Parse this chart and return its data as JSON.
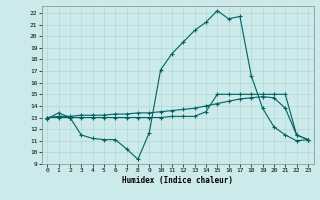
{
  "xlabel": "Humidex (Indice chaleur)",
  "bg_color": "#cceaea",
  "grid_color": "#afd8d8",
  "line_color": "#006060",
  "xlim": [
    -0.5,
    23.5
  ],
  "ylim": [
    9,
    22.6
  ],
  "yticks": [
    9,
    10,
    11,
    12,
    13,
    14,
    15,
    16,
    17,
    18,
    19,
    20,
    21,
    22
  ],
  "xticks": [
    0,
    1,
    2,
    3,
    4,
    5,
    6,
    7,
    8,
    9,
    10,
    11,
    12,
    13,
    14,
    15,
    16,
    17,
    18,
    19,
    20,
    21,
    22,
    23
  ],
  "line1_x": [
    0,
    1,
    2,
    3,
    4,
    5,
    6,
    7,
    8,
    9,
    10,
    11,
    12,
    13,
    14,
    15,
    16,
    17,
    18,
    19,
    20,
    21,
    22,
    23
  ],
  "line1_y": [
    12.9,
    13.4,
    13.0,
    11.5,
    11.2,
    11.1,
    11.1,
    10.3,
    9.4,
    11.7,
    17.1,
    18.5,
    19.5,
    20.5,
    21.2,
    22.2,
    21.5,
    21.7,
    16.6,
    13.8,
    12.2,
    11.5,
    11.0,
    11.1
  ],
  "line2_x": [
    0,
    1,
    2,
    3,
    4,
    5,
    6,
    7,
    8,
    9,
    10,
    11,
    12,
    13,
    14,
    15,
    16,
    17,
    18,
    19,
    20,
    21,
    22,
    23
  ],
  "line2_y": [
    13.0,
    13.1,
    13.1,
    13.2,
    13.2,
    13.2,
    13.3,
    13.3,
    13.4,
    13.4,
    13.5,
    13.6,
    13.7,
    13.8,
    14.0,
    14.2,
    14.4,
    14.6,
    14.7,
    14.8,
    14.7,
    13.8,
    11.5,
    11.1
  ],
  "line3_x": [
    0,
    1,
    2,
    3,
    4,
    5,
    6,
    7,
    8,
    9,
    10,
    11,
    12,
    13,
    14,
    15,
    16,
    17,
    18,
    19,
    20,
    21,
    22,
    23
  ],
  "line3_y": [
    13.0,
    13.0,
    13.0,
    13.0,
    13.0,
    13.0,
    13.0,
    13.0,
    13.0,
    13.0,
    13.0,
    13.1,
    13.1,
    13.1,
    13.5,
    15.0,
    15.0,
    15.0,
    15.0,
    15.0,
    15.0,
    15.0,
    11.5,
    11.1
  ]
}
